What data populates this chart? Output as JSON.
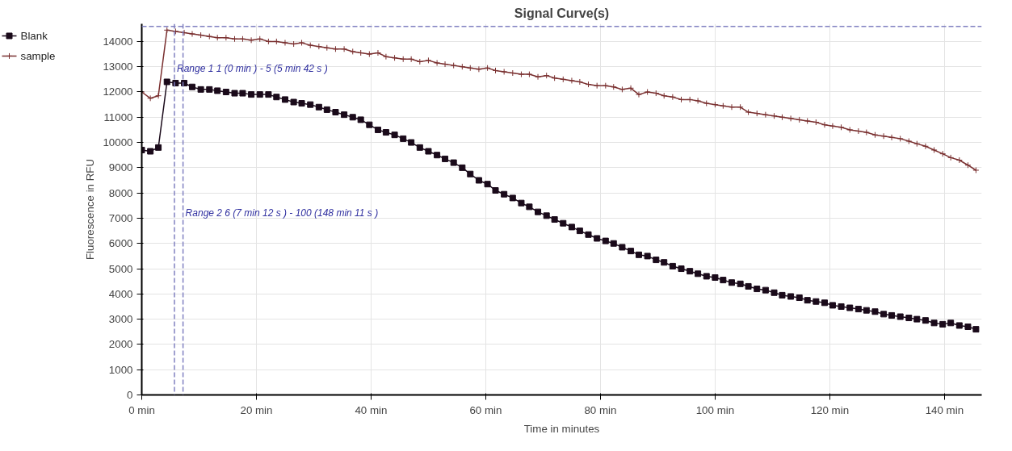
{
  "chart_data": {
    "type": "line",
    "title": "Signal Curve(s)",
    "xlabel": "Time in minutes",
    "ylabel": "Fluorescence in RFU",
    "x": [
      0,
      1.5,
      2.9,
      4.4,
      5.9,
      7.4,
      8.8,
      10.3,
      11.8,
      13.2,
      14.7,
      16.2,
      17.6,
      19.1,
      20.6,
      22.1,
      23.5,
      25,
      26.5,
      27.9,
      29.4,
      30.9,
      32.3,
      33.8,
      35.3,
      36.8,
      38.2,
      39.7,
      41.2,
      42.6,
      44.1,
      45.6,
      47,
      48.5,
      50,
      51.5,
      52.9,
      54.4,
      55.9,
      57.3,
      58.8,
      60.3,
      61.7,
      63.2,
      64.7,
      66.2,
      67.6,
      69.1,
      70.6,
      72,
      73.5,
      75,
      76.4,
      77.9,
      79.4,
      80.9,
      82.3,
      83.8,
      85.3,
      86.7,
      88.2,
      89.7,
      91.1,
      92.6,
      94.1,
      95.6,
      97,
      98.5,
      100,
      101.4,
      102.9,
      104.4,
      105.8,
      107.3,
      108.8,
      110.3,
      111.7,
      113.2,
      114.7,
      116.1,
      117.6,
      119.1,
      120.5,
      122,
      123.5,
      125,
      126.4,
      127.9,
      129.4,
      130.8,
      132.3,
      133.8,
      135.2,
      136.7,
      138.2,
      139.7,
      141.1,
      142.6,
      144.1,
      145.5
    ],
    "series": [
      {
        "name": "Blank",
        "color": "#1a0a1a",
        "marker": "square",
        "values": [
          9700,
          9650,
          9800,
          12400,
          12350,
          12350,
          12200,
          12100,
          12100,
          12050,
          12000,
          11950,
          11950,
          11900,
          11900,
          11900,
          11800,
          11700,
          11600,
          11550,
          11500,
          11400,
          11300,
          11200,
          11100,
          11000,
          10900,
          10700,
          10500,
          10400,
          10300,
          10150,
          10000,
          9800,
          9650,
          9500,
          9350,
          9200,
          9000,
          8750,
          8500,
          8350,
          8100,
          7950,
          7800,
          7600,
          7450,
          7250,
          7100,
          6950,
          6800,
          6650,
          6500,
          6350,
          6200,
          6100,
          6000,
          5850,
          5700,
          5550,
          5500,
          5350,
          5250,
          5100,
          5000,
          4900,
          4800,
          4700,
          4650,
          4550,
          4450,
          4400,
          4300,
          4200,
          4150,
          4050,
          3950,
          3900,
          3850,
          3750,
          3700,
          3650,
          3550,
          3500,
          3450,
          3400,
          3350,
          3300,
          3200,
          3150,
          3100,
          3050,
          3000,
          2950,
          2850,
          2800,
          2850,
          2750,
          2700,
          2600
        ]
      },
      {
        "name": "sample",
        "color": "#7a3030",
        "marker": "cross",
        "values": [
          12000,
          11750,
          11850,
          14450,
          14400,
          14350,
          14300,
          14250,
          14200,
          14150,
          14150,
          14100,
          14100,
          14050,
          14100,
          14000,
          14000,
          13950,
          13900,
          13950,
          13850,
          13800,
          13750,
          13700,
          13700,
          13600,
          13550,
          13500,
          13550,
          13400,
          13350,
          13300,
          13300,
          13200,
          13250,
          13150,
          13100,
          13050,
          13000,
          12950,
          12900,
          12950,
          12850,
          12800,
          12750,
          12700,
          12700,
          12600,
          12650,
          12550,
          12500,
          12450,
          12400,
          12300,
          12250,
          12250,
          12200,
          12100,
          12150,
          11900,
          12000,
          11950,
          11850,
          11800,
          11700,
          11700,
          11650,
          11550,
          11500,
          11450,
          11400,
          11400,
          11200,
          11150,
          11100,
          11050,
          11000,
          10950,
          10900,
          10850,
          10800,
          10700,
          10650,
          10600,
          10500,
          10450,
          10400,
          10300,
          10250,
          10200,
          10150,
          10050,
          9950,
          9850,
          9700,
          9550,
          9400,
          9300,
          9100,
          8900
        ]
      }
    ],
    "xlim": [
      0,
      146.5
    ],
    "ylim": [
      0,
      14700
    ],
    "xticks": [
      {
        "value": 0,
        "label": "0 min"
      },
      {
        "value": 20,
        "label": "20 min"
      },
      {
        "value": 40,
        "label": "40 min"
      },
      {
        "value": 60,
        "label": "60 min"
      },
      {
        "value": 80,
        "label": "80 min"
      },
      {
        "value": 100,
        "label": "100 min"
      },
      {
        "value": 120,
        "label": "120 min"
      },
      {
        "value": 140,
        "label": "140 min"
      }
    ],
    "yticks": [
      0,
      1000,
      2000,
      3000,
      4000,
      5000,
      6000,
      7000,
      8000,
      9000,
      10000,
      11000,
      12000,
      13000,
      14000
    ],
    "ref_lines": [
      {
        "axis": "x",
        "value": 5.7,
        "label": "Range 1 1 (0 min ) - 5 (5 min 42 s )",
        "color": "#8080c0",
        "line_style": "dashed"
      },
      {
        "axis": "x",
        "value": 7.2,
        "label": "Range 2 6 (7 min 12 s ) - 100 (148 min 11 s )",
        "color": "#8080c0",
        "line_style": "dashed"
      },
      {
        "axis": "y",
        "value": 14600,
        "color": "#8080c0",
        "line_style": "dashed"
      }
    ],
    "grid": true,
    "legend": "top left"
  }
}
